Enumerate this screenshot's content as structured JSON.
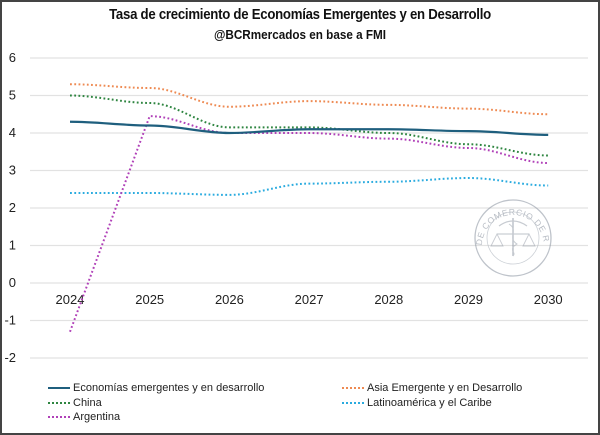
{
  "chart_data": {
    "type": "line",
    "title": "Tasa de crecimiento de Economías Emergentes y en Desarrollo",
    "subtitle": "@BCRmercados en base a FMI",
    "xlabel": "",
    "ylabel": "",
    "x": [
      "2024",
      "2025",
      "2026",
      "2027",
      "2028",
      "2029",
      "2030"
    ],
    "ylim": [
      -2,
      6
    ],
    "yticks": [
      "-2",
      "-1",
      "0",
      "1",
      "2",
      "3",
      "4",
      "5",
      "6"
    ],
    "grid": true,
    "legend_position": "bottom",
    "series": [
      {
        "name": "Economías emergentes y en desarrollo",
        "color": "#1F5F7E",
        "style": "solid",
        "values": [
          4.3,
          4.2,
          4.0,
          4.1,
          4.1,
          4.05,
          3.95
        ]
      },
      {
        "name": "Asia Emergente y en Desarrollo",
        "color": "#EE8A52",
        "style": "dotted",
        "values": [
          5.3,
          5.2,
          4.7,
          4.85,
          4.75,
          4.65,
          4.5
        ]
      },
      {
        "name": "China",
        "color": "#2E8540",
        "style": "dotted",
        "values": [
          5.0,
          4.8,
          4.15,
          4.15,
          4.0,
          3.7,
          3.4
        ]
      },
      {
        "name": "Latinoamérica y el Caribe",
        "color": "#2AABDF",
        "style": "dotted",
        "values": [
          2.4,
          2.4,
          2.35,
          2.65,
          2.7,
          2.8,
          2.6
        ]
      },
      {
        "name": "Argentina",
        "color": "#B040B8",
        "style": "dotted",
        "values": [
          -1.3,
          4.45,
          4.0,
          4.0,
          3.85,
          3.6,
          3.2
        ]
      }
    ],
    "watermark": "BOLSA DE COMERCIO DE ROSARIO"
  }
}
